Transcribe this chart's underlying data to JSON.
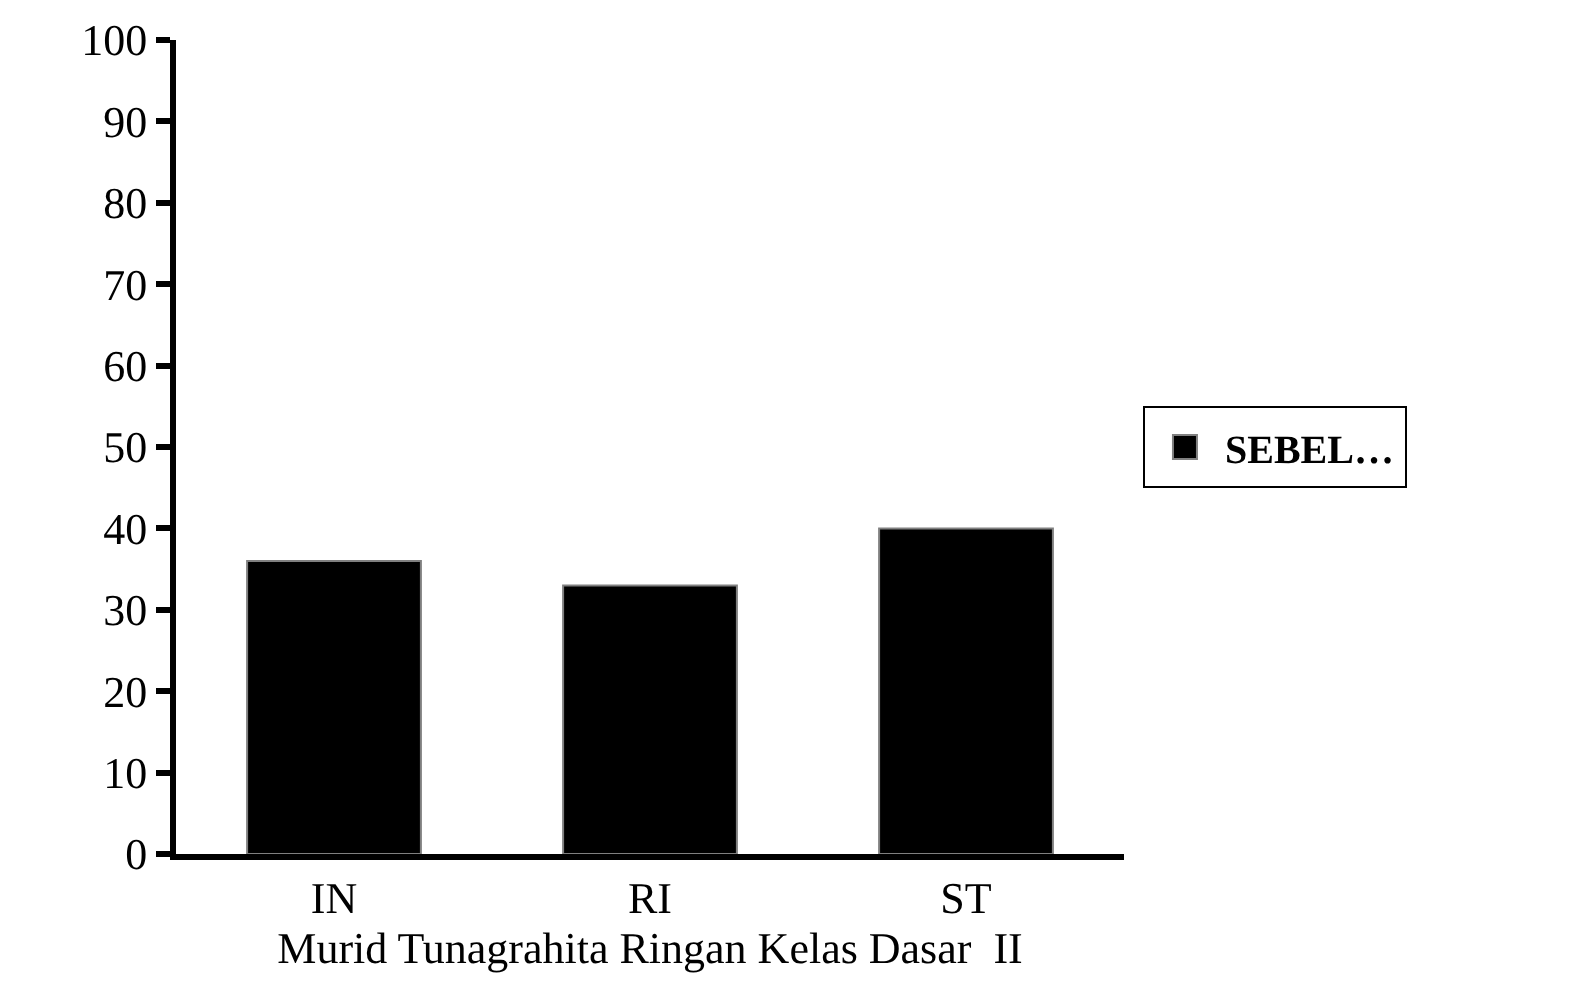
{
  "chart_data": {
    "type": "bar",
    "xlabel": "Murid Tunagrahita Ringan Kelas Dasar  II",
    "categories": [
      "IN",
      "RI",
      "ST"
    ],
    "series": [
      {
        "name": "SEBEL…",
        "color": "#000000",
        "values": [
          36,
          33,
          40
        ]
      }
    ],
    "ylim": [
      0,
      100
    ],
    "yticks": [
      0,
      10,
      20,
      30,
      40,
      50,
      60,
      70,
      80,
      90,
      100
    ],
    "grid": false,
    "legend": "right"
  }
}
